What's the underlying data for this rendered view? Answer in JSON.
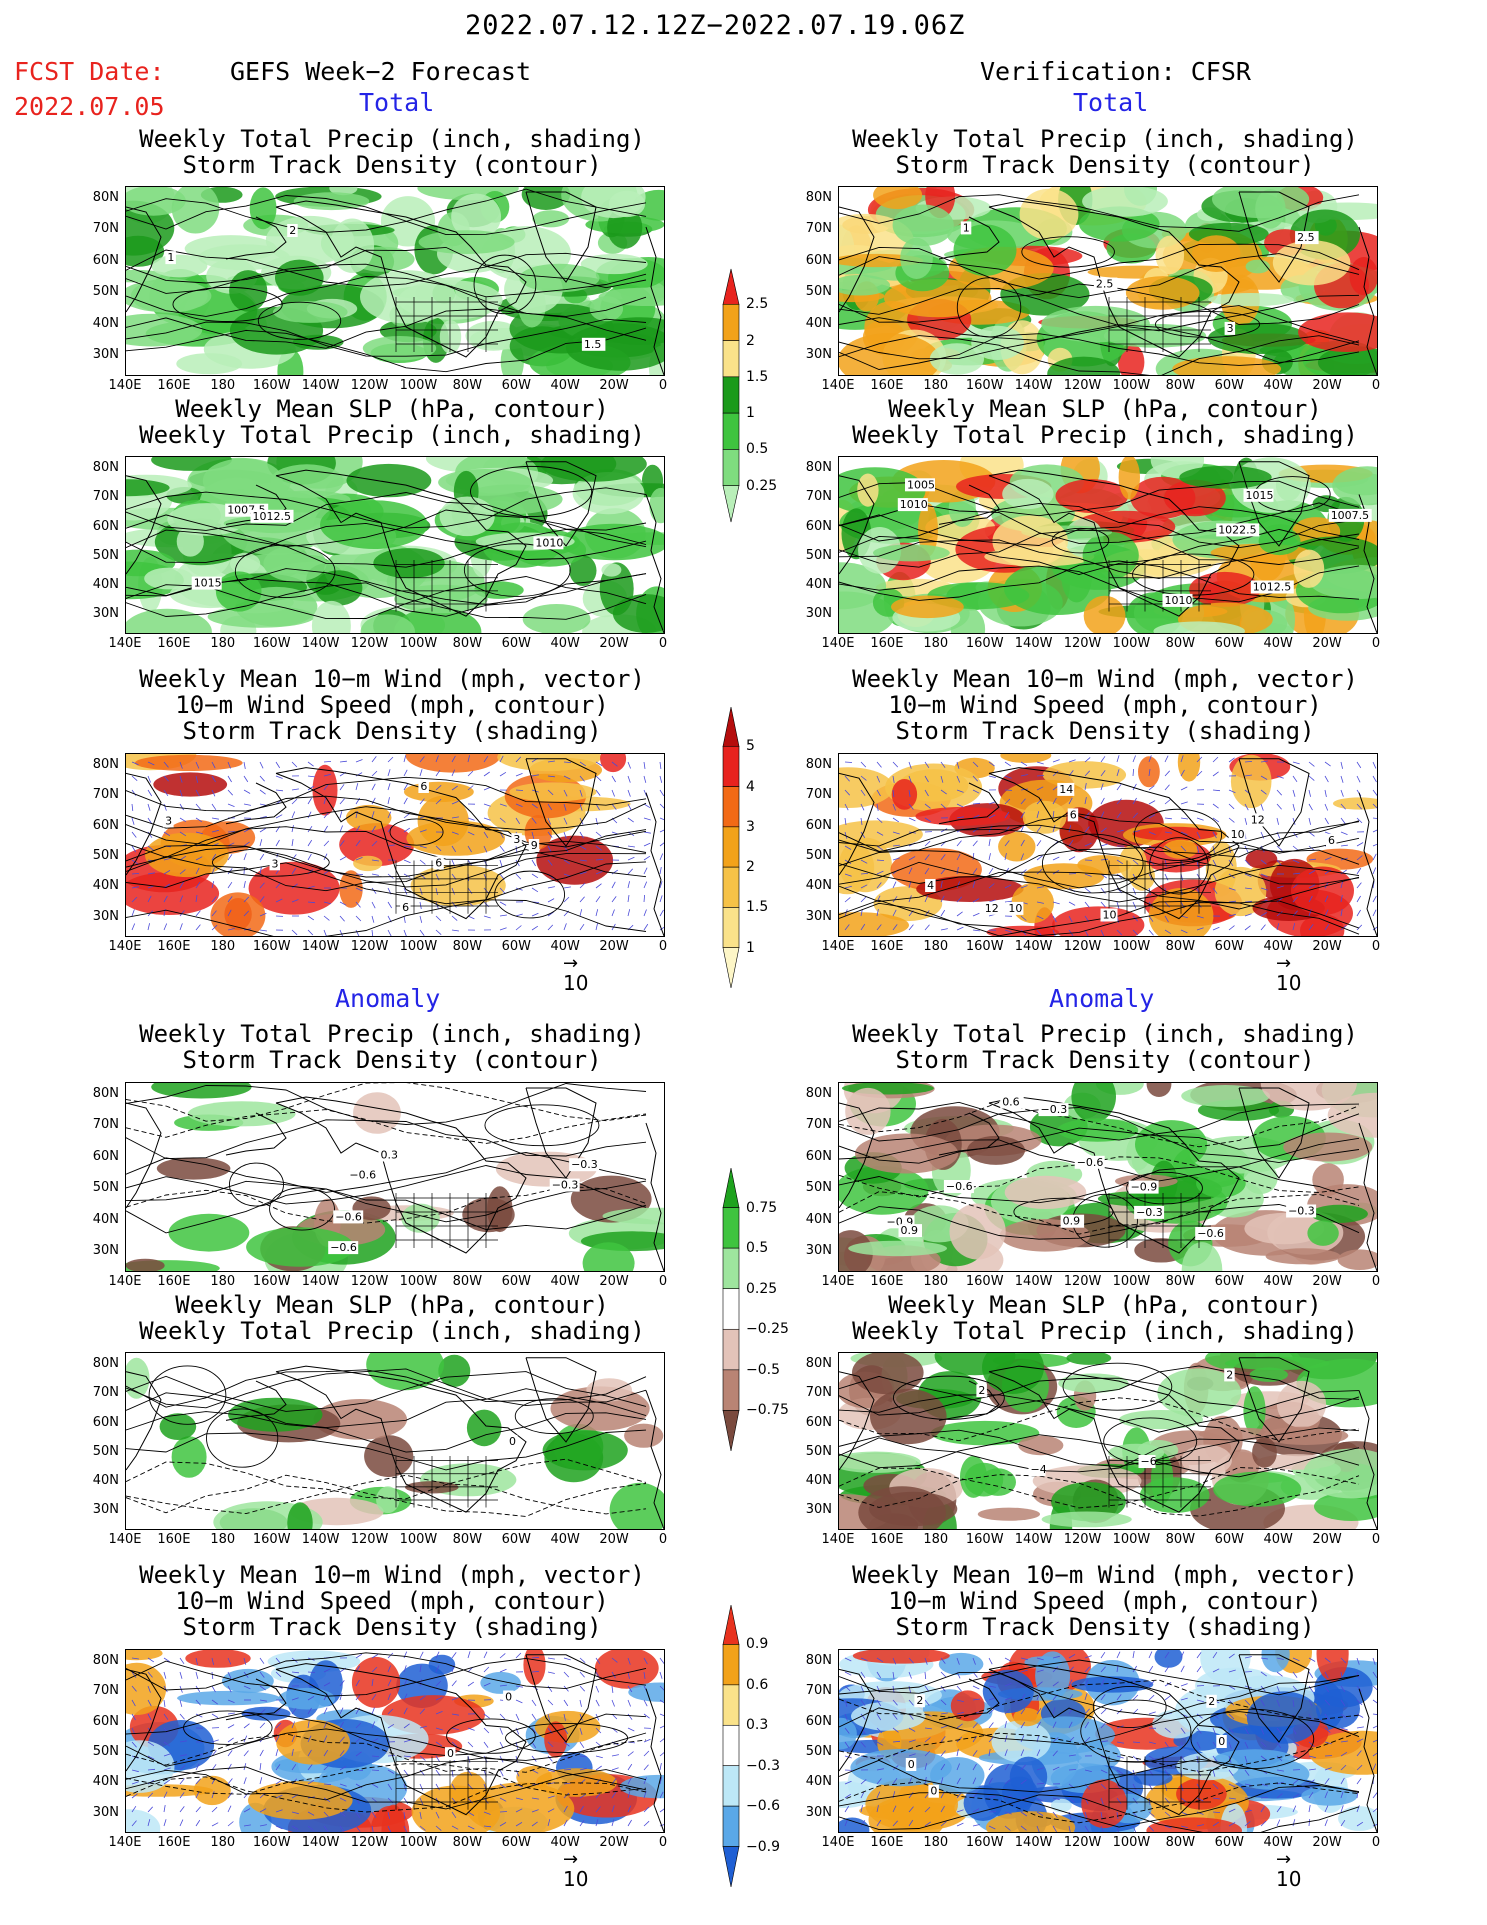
{
  "header": {
    "period": "2022.07.12.12Z−2022.07.19.06Z",
    "fcst_label": "FCST Date:",
    "fcst_date": "2022.07.05",
    "left_heading": "GEFS Week−2 Forecast",
    "right_heading": "Verification: CFSR"
  },
  "sections": {
    "total": "Total",
    "anomaly": "Anomaly"
  },
  "panel_titles": {
    "precip_storm": [
      "Weekly Total Precip (inch, shading)",
      "Storm Track Density (contour)"
    ],
    "slp_precip": [
      "Weekly Mean SLP (hPa, contour)",
      "Weekly Total Precip (inch, shading)"
    ],
    "wind_storm": [
      "Weekly Mean 10−m Wind (mph, vector)",
      "10−m Wind Speed (mph, contour)",
      "Storm Track Density (shading)"
    ]
  },
  "axes": {
    "lat_labels": [
      "80N",
      "70N",
      "60N",
      "50N",
      "40N",
      "30N"
    ],
    "lon_labels": [
      "140E",
      "160E",
      "180",
      "160W",
      "140W",
      "120W",
      "100W",
      "80W",
      "60W",
      "40W",
      "20W",
      "0"
    ]
  },
  "vector_ref": "10",
  "colorbars": {
    "precip_total": {
      "labels": [
        "2.5",
        "2",
        "1.5",
        "1",
        "0.5",
        "0.25"
      ],
      "colors": [
        "#e8231e",
        "#f2a21a",
        "#fae28a",
        "#1b9a1b",
        "#3fc43f",
        "#7fdc7f",
        "#b9efb9"
      ]
    },
    "storm_total": {
      "labels": [
        "5",
        "4",
        "3",
        "2",
        "1.5",
        "1"
      ],
      "colors": [
        "#b50d0d",
        "#e8231e",
        "#f26a16",
        "#f2a21a",
        "#f6c247",
        "#fae28a",
        "#fdf6c7"
      ]
    },
    "precip_anom": {
      "labels": [
        "0.75",
        "0.5",
        "0.25",
        "−0.25",
        "−0.5",
        "−0.75"
      ],
      "colors": [
        "#1ea21e",
        "#3fc43f",
        "#9ee59e",
        "#ffffff",
        "#e3c3b9",
        "#b98474",
        "#7a4a3e"
      ]
    },
    "storm_anom": {
      "labels": [
        "0.9",
        "0.6",
        "0.3",
        "−0.3",
        "−0.6",
        "−0.9"
      ],
      "colors": [
        "#e8321e",
        "#f2a21a",
        "#fae28a",
        "#ffffff",
        "#bde8f7",
        "#5aa8e8",
        "#1f5fd4"
      ]
    }
  },
  "contour_labels": {
    "fc_precip_storm": [
      "2",
      "1.5",
      "1"
    ],
    "fc_slp": [
      "1007.5",
      "1015",
      "1010",
      "1012.5"
    ],
    "fc_wind": [
      "3",
      "3",
      "6",
      "6",
      "6",
      "3",
      "9"
    ],
    "ver_precip_storm": [
      "3",
      "2.5",
      "1",
      "2.5"
    ],
    "ver_slp": [
      "1010",
      "1005",
      "1007.5",
      "1015",
      "1010",
      "1012.5",
      "1022.5"
    ],
    "ver_wind": [
      "10",
      "12",
      "10",
      "4",
      "6",
      "6",
      "14",
      "12",
      "10"
    ],
    "fa_precip_storm": [
      "−0.3",
      "−0.6",
      "−0.6",
      "−0.3",
      "0.3",
      "−0.6"
    ],
    "fa_slp": [
      "0"
    ],
    "fa_wind": [
      "0",
      "0"
    ],
    "va_precip_storm": [
      "−0.3",
      "0.9",
      "−0.9",
      "−0.6",
      "−0.3",
      "−0.9",
      "0.9",
      "−0.6",
      "0.6",
      "−0.3",
      "−0.6"
    ],
    "va_slp": [
      "2",
      "−6",
      "−4",
      "2"
    ],
    "va_wind": [
      "2",
      "0",
      "0",
      "0",
      "2"
    ]
  }
}
